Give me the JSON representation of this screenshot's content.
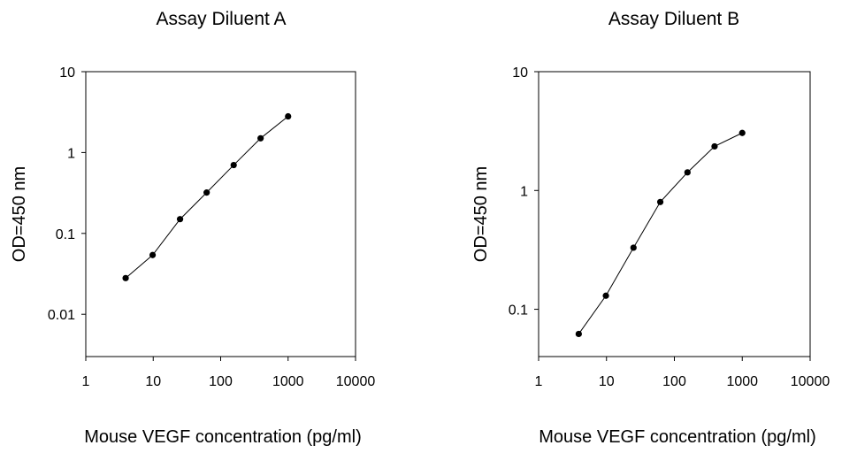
{
  "chart_data": [
    {
      "type": "line",
      "title": "Assay Diluent A",
      "xlabel": "Mouse VEGF concentration (pg/ml)",
      "ylabel": "OD=450 nm",
      "xscale": "log",
      "yscale": "log",
      "xlim": [
        1,
        10000
      ],
      "ylim": [
        0.003,
        10
      ],
      "xticks": [
        1,
        10,
        100,
        1000,
        10000
      ],
      "xtick_labels": [
        "1",
        "10",
        "100",
        "1000",
        "10000"
      ],
      "yticks": [
        0.01,
        0.1,
        1,
        10
      ],
      "ytick_labels": [
        "0.01",
        "0.1",
        "1",
        "10"
      ],
      "grid": false,
      "markers": true,
      "series": [
        {
          "x": [
            3.9,
            9.8,
            25,
            62,
            156,
            391,
            1000
          ],
          "y": [
            0.028,
            0.054,
            0.15,
            0.32,
            0.7,
            1.5,
            2.8
          ]
        }
      ]
    },
    {
      "type": "line",
      "title": "Assay Diluent B",
      "xlabel": "Mouse VEGF concentration (pg/ml)",
      "ylabel": "OD=450 nm",
      "xscale": "log",
      "yscale": "log",
      "xlim": [
        1,
        10000
      ],
      "ylim": [
        0.04,
        10
      ],
      "xticks": [
        1,
        10,
        100,
        1000,
        10000
      ],
      "xtick_labels": [
        "1",
        "10",
        "100",
        "1000",
        "10000"
      ],
      "yticks": [
        0.1,
        1,
        10
      ],
      "ytick_labels": [
        "0.1",
        "1",
        "10"
      ],
      "grid": false,
      "markers": true,
      "series": [
        {
          "x": [
            3.9,
            9.8,
            25,
            62,
            156,
            391,
            1000
          ],
          "y": [
            0.062,
            0.13,
            0.33,
            0.8,
            1.42,
            2.35,
            3.05
          ]
        }
      ]
    }
  ]
}
